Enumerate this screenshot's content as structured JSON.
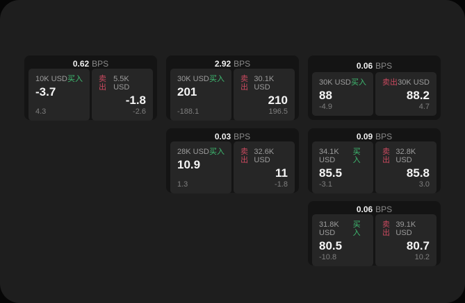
{
  "labels": {
    "bps": "BPS",
    "buy": "买入",
    "sell": "卖出"
  },
  "colors": {
    "background": "#060606",
    "surface": "#1e1e1e",
    "card": "#141414",
    "panel": "#262626",
    "buy": "#3fbd72",
    "sell": "#c9495f",
    "value_text": "#f5f5f5",
    "muted_text": "#8b8b8b"
  },
  "cards": [
    {
      "spread_bps": "0.62",
      "buy": {
        "size": "10K USD",
        "price": "-3.7",
        "change": "4.3"
      },
      "sell": {
        "size": "5.5K USD",
        "price": "-1.8",
        "change": "-2.6"
      }
    },
    {
      "spread_bps": "2.92",
      "buy": {
        "size": "30K USD",
        "price": "201",
        "change": "-188.1"
      },
      "sell": {
        "size": "30.1K USD",
        "price": "210",
        "change": "196.5"
      }
    },
    {
      "spread_bps": "0.06",
      "buy": {
        "size": "30K USD",
        "price": "88",
        "change": "-4.9"
      },
      "sell": {
        "size": "30K USD",
        "price": "88.2",
        "change": "4.7"
      }
    },
    {
      "spread_bps": "0.03",
      "buy": {
        "size": "28K USD",
        "price": "10.9",
        "change": "1.3"
      },
      "sell": {
        "size": "32.6K USD",
        "price": "11",
        "change": "-1.8"
      }
    },
    {
      "spread_bps": "0.09",
      "buy": {
        "size": "34.1K USD",
        "price": "85.5",
        "change": "-3.1"
      },
      "sell": {
        "size": "32.8K USD",
        "price": "85.8",
        "change": "3.0"
      }
    },
    {
      "spread_bps": "0.06",
      "buy": {
        "size": "31.8K USD",
        "price": "80.5",
        "change": "-10.8"
      },
      "sell": {
        "size": "39.1K USD",
        "price": "80.7",
        "change": "10.2"
      }
    }
  ]
}
